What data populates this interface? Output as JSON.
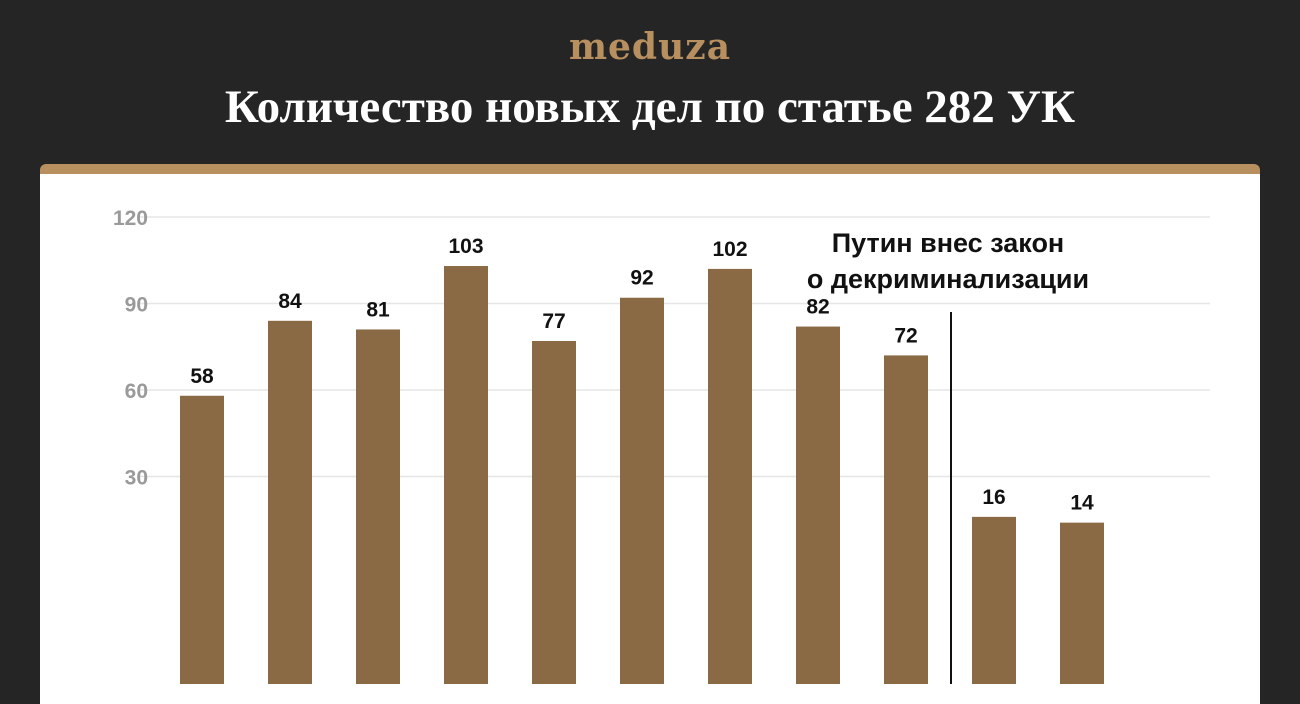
{
  "header": {
    "logo": "meduza",
    "title": "Количество новых дел по статье 282 УК"
  },
  "colors": {
    "bar": "#b88f5f",
    "accent": "#b88f5f",
    "background": "#252525"
  },
  "chart_data": {
    "type": "bar",
    "title": "Количество новых дел по статье 282 УК",
    "xlabel": "",
    "ylabel": "",
    "categories": [
      "",
      "",
      "",
      "",
      "",
      "",
      "",
      "",
      "",
      "",
      ""
    ],
    "values": [
      58,
      84,
      81,
      103,
      77,
      92,
      102,
      82,
      72,
      16,
      14
    ],
    "ylim": [
      0,
      120
    ],
    "yticks": [
      30,
      60,
      90,
      120
    ],
    "grid": true,
    "annotations": [
      {
        "text_lines": [
          "Путин внес закон",
          "о декриминализации"
        ],
        "after_index": 8
      }
    ]
  }
}
